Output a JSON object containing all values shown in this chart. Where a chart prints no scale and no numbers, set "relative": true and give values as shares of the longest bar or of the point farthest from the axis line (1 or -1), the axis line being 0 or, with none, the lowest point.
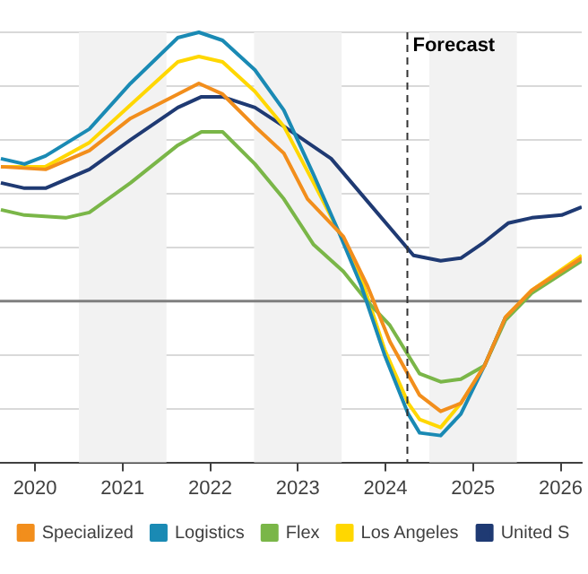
{
  "chart_data": {
    "type": "line",
    "relative": true,
    "xlim": [
      2020.1,
      2026.74
    ],
    "xticks": [
      {
        "value": 2020.5,
        "label": "2020"
      },
      {
        "value": 2021.5,
        "label": "2021"
      },
      {
        "value": 2022.5,
        "label": "2022"
      },
      {
        "value": 2023.5,
        "label": "2023"
      },
      {
        "value": 2024.5,
        "label": "2024"
      },
      {
        "value": 2025.5,
        "label": "2025"
      },
      {
        "value": 2026.5,
        "label": "2026"
      }
    ],
    "series": [
      {
        "name": "Specialized",
        "color": "#f28e1c",
        "x": [
          2020.11,
          2020.62,
          2021.12,
          2021.59,
          2022.13,
          2022.37,
          2022.64,
          2023.01,
          2023.34,
          2023.61,
          2024.02,
          2024.29,
          2024.55,
          2024.89,
          2025.13,
          2025.36,
          2025.63,
          2025.87,
          2026.17,
          2026.74
        ],
        "values": [
          0.5,
          0.49,
          0.56,
          0.68,
          0.77,
          0.81,
          0.77,
          0.65,
          0.55,
          0.38,
          0.24,
          0.06,
          -0.15,
          -0.35,
          -0.41,
          -0.38,
          -0.24,
          -0.06,
          0.04,
          0.16
        ]
      },
      {
        "name": "Logistics",
        "color": "#1a8ab4",
        "x": [
          2020.11,
          2020.38,
          2020.62,
          2021.12,
          2021.59,
          2022.13,
          2022.37,
          2022.64,
          2023.01,
          2023.34,
          2023.68,
          2023.95,
          2024.22,
          2024.49,
          2024.76,
          2024.89,
          2025.13,
          2025.36,
          2025.63,
          2025.87
        ],
        "values": [
          0.53,
          0.51,
          0.54,
          0.64,
          0.81,
          0.98,
          1,
          0.97,
          0.86,
          0.71,
          0.47,
          0.27,
          0.06,
          -0.2,
          -0.42,
          -0.49,
          -0.5,
          -0.42,
          -0.24,
          -0.06
        ]
      },
      {
        "name": "Flex",
        "color": "#7ab648",
        "x": [
          2020.11,
          2020.38,
          2020.85,
          2021.12,
          2021.59,
          2022.13,
          2022.4,
          2022.64,
          2023.01,
          2023.34,
          2023.68,
          2024.02,
          2024.29,
          2024.55,
          2024.89,
          2025.13,
          2025.36,
          2025.63,
          2025.87,
          2026.17,
          2026.74
        ],
        "values": [
          0.34,
          0.32,
          0.31,
          0.33,
          0.44,
          0.58,
          0.63,
          0.63,
          0.51,
          0.38,
          0.21,
          0.11,
          0,
          -0.09,
          -0.27,
          -0.3,
          -0.29,
          -0.24,
          -0.07,
          0.03,
          0.15
        ]
      },
      {
        "name": "Los Angeles",
        "color": "#ffd700",
        "x": [
          2020.11,
          2020.62,
          2021.12,
          2021.59,
          2022.13,
          2022.37,
          2022.64,
          2023.01,
          2023.34,
          2023.68,
          2023.95,
          2024.22,
          2024.49,
          2024.76,
          2024.89,
          2025.13,
          2025.36,
          2025.63,
          2025.87,
          2026.17,
          2026.74
        ],
        "values": [
          0.5,
          0.5,
          0.59,
          0.73,
          0.89,
          0.91,
          0.89,
          0.78,
          0.65,
          0.44,
          0.27,
          0.09,
          -0.18,
          -0.38,
          -0.44,
          -0.47,
          -0.38,
          -0.24,
          -0.06,
          0.04,
          0.17
        ]
      },
      {
        "name": "United S",
        "color": "#1f3a73",
        "x": [
          2020.11,
          2020.38,
          2020.62,
          2021.12,
          2021.59,
          2022.13,
          2022.4,
          2022.64,
          2023.01,
          2023.34,
          2023.88,
          2024.35,
          2024.82,
          2025.13,
          2025.36,
          2025.63,
          2025.9,
          2026.17,
          2026.51,
          2026.74
        ],
        "values": [
          0.44,
          0.42,
          0.42,
          0.49,
          0.6,
          0.72,
          0.76,
          0.76,
          0.72,
          0.65,
          0.53,
          0.35,
          0.17,
          0.15,
          0.16,
          0.22,
          0.29,
          0.31,
          0.32,
          0.35
        ]
      }
    ],
    "bands": [
      {
        "axis": "x",
        "from": 2021,
        "to": 2022,
        "color": "#f2f2f2"
      },
      {
        "axis": "x",
        "from": 2023,
        "to": 2024,
        "color": "#f2f2f2"
      },
      {
        "axis": "x",
        "from": 2025,
        "to": 2026,
        "color": "#f2f2f2"
      }
    ],
    "ref_lines": [
      {
        "axis": "x",
        "value": 2024.75,
        "label": "Forecast",
        "line_style": "dashed",
        "color": "#333333"
      }
    ],
    "grid": "y",
    "legend": "bottom",
    "marker": "none",
    "line_style": "solid"
  }
}
